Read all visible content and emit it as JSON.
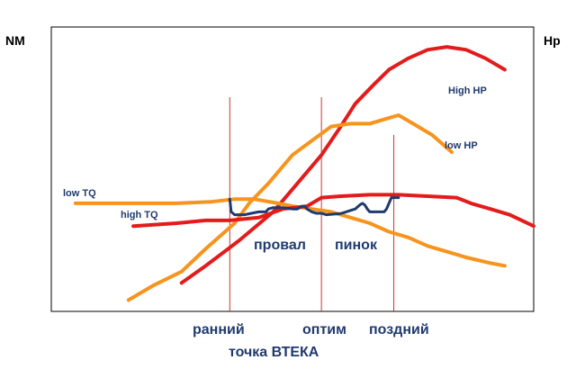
{
  "chart_data": {
    "type": "line",
    "y_left_label": "NM",
    "y_right_label": "Hp",
    "x_range": [
      0,
      100
    ],
    "y_range": [
      0,
      100
    ],
    "grid": false,
    "colors": {
      "frame": "#000000",
      "vertical_lines": "#cc3333",
      "dark_blue": "#1f3a6e",
      "orange": "#f7941d",
      "red": "#e31b1b"
    },
    "series": [
      {
        "name": "High HP",
        "color": "#e31b1b",
        "points": [
          [
            27,
            10
          ],
          [
            32,
            16
          ],
          [
            39,
            25
          ],
          [
            46,
            35
          ],
          [
            51,
            45
          ],
          [
            56,
            55
          ],
          [
            60,
            65
          ],
          [
            63,
            73
          ],
          [
            67,
            80
          ],
          [
            70,
            85
          ],
          [
            74,
            89
          ],
          [
            78,
            92
          ],
          [
            82,
            93
          ],
          [
            86,
            92
          ],
          [
            90,
            89
          ],
          [
            94,
            85
          ]
        ]
      },
      {
        "name": "low HP",
        "color": "#f7941d",
        "points": [
          [
            16,
            4
          ],
          [
            21,
            9
          ],
          [
            27,
            14
          ],
          [
            32,
            22
          ],
          [
            38,
            31
          ],
          [
            41,
            38
          ],
          [
            45,
            45
          ],
          [
            50,
            55
          ],
          [
            54,
            60
          ],
          [
            58,
            65
          ],
          [
            62,
            66
          ],
          [
            66,
            66
          ],
          [
            70,
            68
          ],
          [
            72,
            69
          ],
          [
            75,
            66
          ],
          [
            79,
            62
          ],
          [
            83,
            56
          ]
        ]
      },
      {
        "name": "low TQ",
        "color": "#f7941d",
        "points": [
          [
            5,
            38
          ],
          [
            12,
            38
          ],
          [
            19,
            38
          ],
          [
            26,
            38
          ],
          [
            33,
            38.5
          ],
          [
            38,
            39.5
          ],
          [
            42,
            39.5
          ],
          [
            47,
            38
          ],
          [
            50,
            37
          ],
          [
            54,
            36
          ],
          [
            58,
            35
          ],
          [
            62,
            33
          ],
          [
            66,
            31
          ],
          [
            70,
            28
          ],
          [
            74,
            26
          ],
          [
            78,
            23
          ],
          [
            82,
            21
          ],
          [
            86,
            19
          ],
          [
            91,
            17
          ],
          [
            94,
            16
          ]
        ]
      },
      {
        "name": "high TQ",
        "color": "#e31b1b",
        "points": [
          [
            17,
            30
          ],
          [
            26,
            31
          ],
          [
            32,
            32
          ],
          [
            37,
            32
          ],
          [
            43,
            33
          ],
          [
            48,
            36
          ],
          [
            53,
            37
          ],
          [
            56,
            40
          ],
          [
            60,
            40.5
          ],
          [
            66,
            41
          ],
          [
            72,
            41
          ],
          [
            78,
            40.5
          ],
          [
            84,
            40
          ],
          [
            87,
            38
          ],
          [
            91,
            36
          ],
          [
            95,
            34
          ],
          [
            100,
            30
          ]
        ]
      },
      {
        "name": "",
        "color": "#1f3a6e",
        "points": [
          [
            37,
            39.5
          ],
          [
            37.3,
            35
          ],
          [
            38,
            34
          ],
          [
            40,
            34
          ],
          [
            41.5,
            34.5
          ],
          [
            43,
            35
          ],
          [
            44.5,
            35
          ],
          [
            45,
            36
          ],
          [
            46,
            36.5
          ],
          [
            48,
            36.5
          ],
          [
            50,
            36
          ],
          [
            51,
            36
          ],
          [
            52,
            37
          ],
          [
            52.5,
            37
          ],
          [
            53,
            36
          ],
          [
            54,
            35
          ],
          [
            55,
            34.5
          ],
          [
            56,
            34.5
          ],
          [
            57,
            34
          ],
          [
            60,
            34.4
          ],
          [
            63,
            36
          ],
          [
            64,
            37.5
          ],
          [
            64.5,
            38
          ],
          [
            65,
            37.4
          ],
          [
            65.5,
            36
          ],
          [
            66,
            35
          ],
          [
            67,
            35
          ],
          [
            69,
            35
          ],
          [
            69.5,
            36
          ],
          [
            70,
            38
          ],
          [
            70.5,
            40
          ],
          [
            72,
            40
          ]
        ]
      }
    ],
    "vertical_markers": [
      {
        "x": 37,
        "label": "ранний"
      },
      {
        "x": 56,
        "label": "оптим"
      },
      {
        "x": 71,
        "label": "поздний"
      }
    ],
    "x_title": "точка ВТЕКА",
    "annotations": [
      "провал",
      "пинок"
    ]
  }
}
